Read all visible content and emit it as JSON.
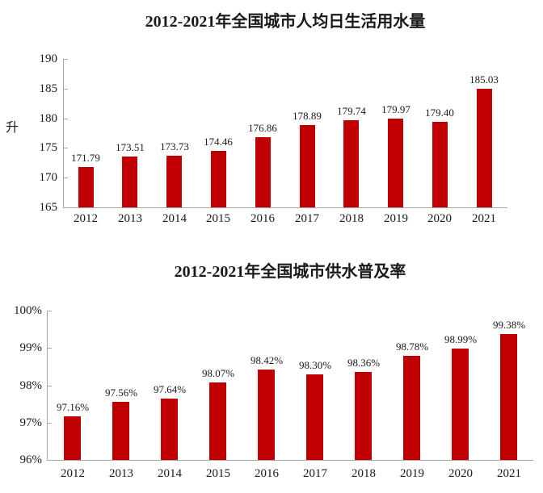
{
  "text_color": "#1a1a1a",
  "axis_color": "#a6a6a6",
  "chart_data": [
    {
      "type": "bar",
      "title": "2012-2021年全国城市人均日生活用水量",
      "ylabel": "升",
      "xlabel": "",
      "categories": [
        "2012",
        "2013",
        "2014",
        "2015",
        "2016",
        "2017",
        "2018",
        "2019",
        "2020",
        "2021"
      ],
      "values": [
        171.79,
        173.51,
        173.73,
        174.46,
        176.86,
        178.89,
        179.74,
        179.97,
        179.4,
        185.03
      ],
      "value_labels": [
        "171.79",
        "173.51",
        "173.73",
        "174.46",
        "176.86",
        "178.89",
        "179.74",
        "179.97",
        "179.40",
        "185.03"
      ],
      "ylim": [
        165,
        190
      ],
      "yticks": [
        165,
        170,
        175,
        180,
        185,
        190
      ],
      "ytick_labels": [
        "165",
        "170",
        "175",
        "180",
        "185",
        "190"
      ],
      "bar_color": "#C00000",
      "grid": false,
      "legend": null
    },
    {
      "type": "bar",
      "title": "2012-2021年全国城市供水普及率",
      "ylabel": "",
      "xlabel": "",
      "categories": [
        "2012",
        "2013",
        "2014",
        "2015",
        "2016",
        "2017",
        "2018",
        "2019",
        "2020",
        "2021"
      ],
      "values": [
        97.16,
        97.56,
        97.64,
        98.07,
        98.42,
        98.3,
        98.36,
        98.78,
        98.99,
        99.38
      ],
      "value_labels": [
        "97.16%",
        "97.56%",
        "97.64%",
        "98.07%",
        "98.42%",
        "98.30%",
        "98.36%",
        "98.78%",
        "98.99%",
        "99.38%"
      ],
      "ylim": [
        96,
        100
      ],
      "yticks": [
        96,
        97,
        98,
        99,
        100
      ],
      "ytick_labels": [
        "96%",
        "97%",
        "98%",
        "99%",
        "100%"
      ],
      "bar_color": "#C00000",
      "grid": false,
      "legend": null
    }
  ]
}
